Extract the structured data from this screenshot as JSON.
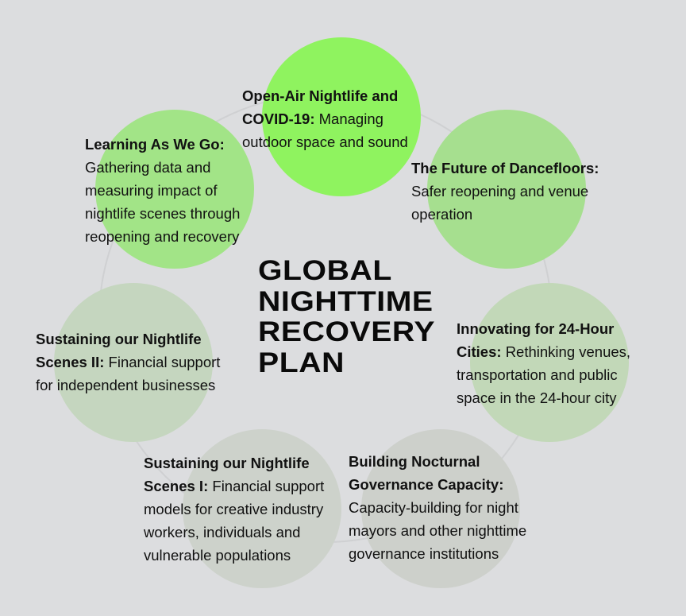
{
  "title": {
    "lines": [
      "GLOBAL",
      "NIGHTTIME",
      "RECOVERY",
      "PLAN"
    ]
  },
  "colors": {
    "background": "#dcdddf",
    "ring_line": "#cfd0d2",
    "open_air": "#8ff35f",
    "learning": "#a2e487",
    "dancefloors": "#a6df8f",
    "innovating": "#c2d8b8",
    "sustaining_ii": "#c5d6bf",
    "sustaining_i": "#cdd2cb",
    "governance": "#cdd0cb"
  },
  "nodes": [
    {
      "id": "open-air",
      "heading": "Open-Air Nightlife and COVID-19:",
      "heading_lines": [
        "Open-Air Nightlife and",
        "COVID-19:"
      ],
      "body_first": "Managing",
      "body_rest": [
        "outdoor space and sound"
      ]
    },
    {
      "id": "dancefloors",
      "heading_lines": [
        "The Future of Dancefloors:"
      ],
      "body_lines": [
        "Safer reopening and venue",
        "operation"
      ]
    },
    {
      "id": "innovating",
      "heading_lines": [
        "Innovating for 24-Hour",
        "Cities:"
      ],
      "body_first": "Rethinking venues,",
      "body_rest": [
        "transportation and public",
        "space in the 24-hour city"
      ]
    },
    {
      "id": "governance",
      "heading_lines": [
        "Building Nocturnal",
        "Governance Capacity:"
      ],
      "body_lines": [
        "Capacity-building for night",
        "mayors and other nighttime",
        "governance institutions"
      ]
    },
    {
      "id": "sustaining-i",
      "heading_lines": [
        "Sustaining our Nightlife",
        "Scenes I:"
      ],
      "body_first": "Financial support",
      "body_rest": [
        "models for creative industry",
        "workers, individuals and",
        "vulnerable populations"
      ]
    },
    {
      "id": "sustaining-ii",
      "heading_lines": [
        "Sustaining our Nightlife",
        "Scenes II:"
      ],
      "body_first": "Financial support",
      "body_rest": [
        "for independent businesses"
      ]
    },
    {
      "id": "learning",
      "heading_lines": [
        "Learning As We Go:"
      ],
      "body_lines": [
        "Gathering data and",
        "measuring impact of",
        "nightlife scenes through",
        "reopening and recovery"
      ]
    }
  ]
}
